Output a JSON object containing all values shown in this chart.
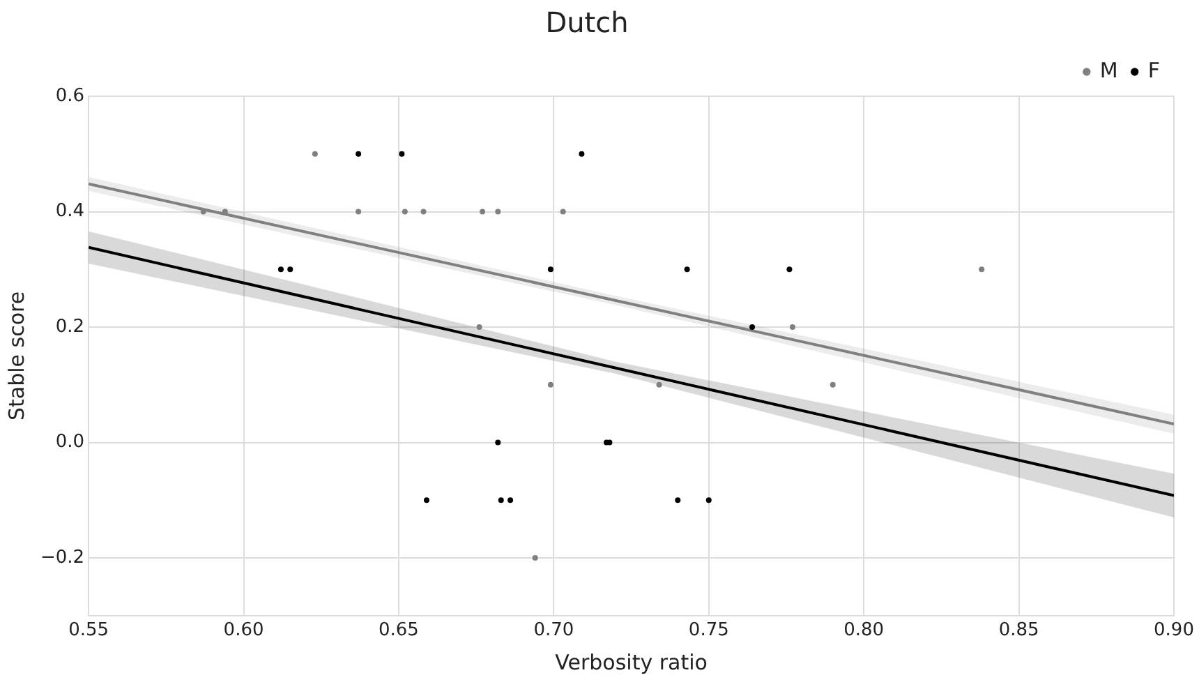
{
  "chart_data": {
    "type": "scatter",
    "title": "Dutch",
    "xlabel": "Verbosity ratio",
    "ylabel": "Stable score",
    "xlim": [
      0.55,
      0.9
    ],
    "xticks": [
      0.55,
      {
        "value": 0.6,
        "label": "0.60"
      },
      0.65,
      {
        "value": 0.7,
        "label": "0.70"
      },
      0.75,
      {
        "value": 0.8,
        "label": "0.80"
      },
      0.85,
      {
        "value": 0.9,
        "label": "0.90"
      }
    ],
    "ylim": [
      -0.3,
      0.6
    ],
    "yticks": [
      {
        "value": -0.2,
        "label": "−0.2"
      },
      {
        "value": 0,
        "label": "0.0"
      },
      0.2,
      0.4,
      0.6
    ],
    "grid": true,
    "legend": "top right",
    "series": [
      {
        "name": "M",
        "color": "#808080",
        "marker": "circle",
        "x": [
          0.587,
          0.594,
          0.623,
          0.637,
          0.652,
          0.658,
          0.677,
          0.682,
          0.703,
          0.676,
          0.699,
          0.734,
          0.777,
          0.79,
          0.838,
          0.694
        ],
        "values": [
          0.4,
          0.4,
          0.5,
          0.4,
          0.4,
          0.4,
          0.4,
          0.4,
          0.4,
          0.2,
          0.1,
          0.1,
          0.2,
          0.1,
          0.3,
          -0.2
        ]
      },
      {
        "name": "F",
        "color": "#000000",
        "marker": "circle",
        "x": [
          0.637,
          0.651,
          0.709,
          0.612,
          0.615,
          0.699,
          0.743,
          0.776,
          0.764,
          0.682,
          0.717,
          0.718,
          0.659,
          0.683,
          0.686,
          0.74,
          0.75
        ],
        "values": [
          0.5,
          0.5,
          0.5,
          0.3,
          0.3,
          0.3,
          0.3,
          0.3,
          0.2,
          0,
          0,
          0,
          -0.1,
          -0.1,
          -0.1,
          -0.1,
          -0.1
        ]
      },
      {
        "type": "line",
        "marker": "none",
        "color": "#808080",
        "x": [
          0.55,
          0.72,
          0.9
        ],
        "values": [
          0.448,
          0.246,
          0.032
        ],
        "lower": [
          0.436,
          0.238,
          0.015
        ],
        "upper": [
          0.46,
          0.254,
          0.048
        ]
      },
      {
        "type": "line",
        "marker": "none",
        "color": "#000000",
        "x": [
          0.55,
          0.72,
          0.9
        ],
        "values": [
          0.338,
          0.129,
          -0.092
        ],
        "lower": [
          0.31,
          0.119,
          -0.13
        ],
        "upper": [
          0.366,
          0.14,
          -0.054
        ]
      }
    ]
  }
}
